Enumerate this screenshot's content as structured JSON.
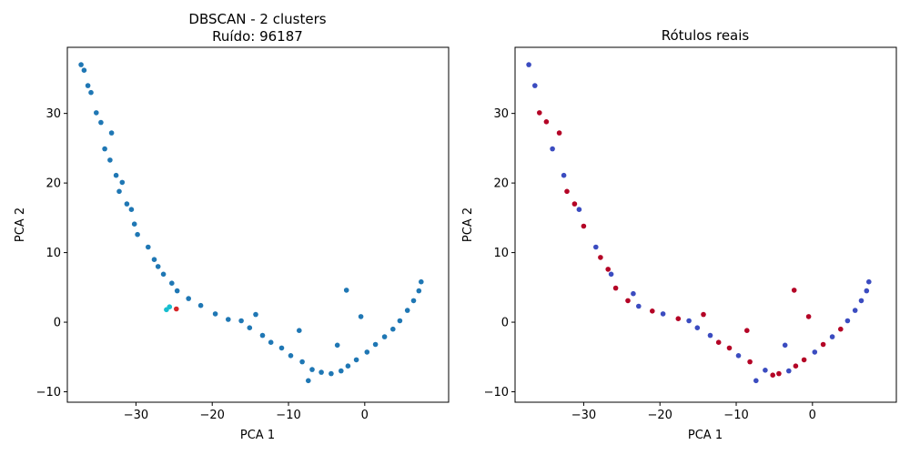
{
  "chart_data": [
    {
      "type": "scatter",
      "title": "DBSCAN - 2 clusters",
      "subtitle": "Ruído: 96187",
      "xlabel": "PCA 1",
      "ylabel": "PCA 2",
      "xlim": [
        -39,
        11
      ],
      "ylim": [
        -11.5,
        39.5
      ],
      "xticks": [
        -30,
        -20,
        -10,
        0
      ],
      "xtick_labels": [
        "−30",
        "−20",
        "−10",
        "0"
      ],
      "yticks": [
        -10,
        0,
        10,
        20,
        30
      ],
      "ytick_labels": [
        "−10",
        "0",
        "10",
        "20",
        "30"
      ],
      "grid": false,
      "series": [
        {
          "color": "#1f77b4",
          "points": [
            [
              -37.2,
              37.0
            ],
            [
              -36.8,
              36.2
            ],
            [
              -36.3,
              34.0
            ],
            [
              -35.9,
              33.0
            ],
            [
              -35.2,
              30.1
            ],
            [
              -34.6,
              28.7
            ],
            [
              -33.2,
              27.2
            ],
            [
              -34.1,
              24.9
            ],
            [
              -33.4,
              23.3
            ],
            [
              -32.6,
              21.1
            ],
            [
              -31.8,
              20.1
            ],
            [
              -32.2,
              18.8
            ],
            [
              -31.2,
              17.0
            ],
            [
              -30.6,
              16.2
            ],
            [
              -30.2,
              14.1
            ],
            [
              -29.8,
              12.6
            ],
            [
              -28.4,
              10.8
            ],
            [
              -27.6,
              9.0
            ],
            [
              -27.1,
              8.0
            ],
            [
              -26.4,
              6.9
            ],
            [
              -25.3,
              5.6
            ],
            [
              -24.6,
              4.5
            ],
            [
              -23.1,
              3.4
            ],
            [
              -21.5,
              2.4
            ],
            [
              -19.6,
              1.2
            ],
            [
              -17.9,
              0.4
            ],
            [
              -15.1,
              -0.8
            ],
            [
              -13.4,
              -1.9
            ],
            [
              -12.3,
              -2.9
            ],
            [
              -10.9,
              -3.7
            ],
            [
              -9.7,
              -4.8
            ],
            [
              -8.2,
              -5.7
            ],
            [
              -6.9,
              -6.8
            ],
            [
              -5.7,
              -7.2
            ],
            [
              -4.4,
              -7.4
            ],
            [
              -3.1,
              -7.0
            ],
            [
              -2.2,
              -6.3
            ],
            [
              -1.1,
              -5.4
            ],
            [
              0.3,
              -4.3
            ],
            [
              1.4,
              -3.2
            ],
            [
              2.6,
              -2.1
            ],
            [
              3.7,
              -1.0
            ],
            [
              4.6,
              0.2
            ],
            [
              5.6,
              1.7
            ],
            [
              6.4,
              3.1
            ],
            [
              7.1,
              4.5
            ],
            [
              7.4,
              5.8
            ],
            [
              -7.4,
              -8.4
            ],
            [
              -2.4,
              4.6
            ],
            [
              -16.2,
              0.2
            ],
            [
              -14.3,
              1.1
            ],
            [
              -8.6,
              -1.2
            ],
            [
              -3.6,
              -3.3
            ],
            [
              -0.5,
              0.8
            ]
          ]
        },
        {
          "color": "#17becf",
          "points": [
            [
              -26.0,
              1.8
            ],
            [
              -25.6,
              2.2
            ]
          ]
        },
        {
          "color": "#d62728",
          "points": [
            [
              -24.7,
              1.9
            ]
          ]
        }
      ]
    },
    {
      "type": "scatter",
      "title": "Rótulos reais",
      "xlabel": "PCA 1",
      "ylabel": "PCA 2",
      "xlim": [
        -39,
        11
      ],
      "ylim": [
        -11.5,
        39.5
      ],
      "xticks": [
        -30,
        -20,
        -10,
        0
      ],
      "xtick_labels": [
        "−30",
        "−20",
        "−10",
        "0"
      ],
      "yticks": [
        -10,
        0,
        10,
        20,
        30
      ],
      "ytick_labels": [
        "−10",
        "0",
        "10",
        "20",
        "30"
      ],
      "grid": false,
      "series": [
        {
          "color": "#3b4cc0",
          "points": [
            [
              -37.2,
              37.0
            ],
            [
              -36.4,
              34.0
            ],
            [
              -34.1,
              24.9
            ],
            [
              -32.6,
              21.1
            ],
            [
              -30.6,
              16.2
            ],
            [
              -28.4,
              10.8
            ],
            [
              -26.4,
              6.9
            ],
            [
              -23.5,
              4.1
            ],
            [
              -22.8,
              2.3
            ],
            [
              -19.6,
              1.2
            ],
            [
              -15.1,
              -0.8
            ],
            [
              -13.4,
              -1.9
            ],
            [
              -9.7,
              -4.8
            ],
            [
              -6.2,
              -6.9
            ],
            [
              -3.1,
              -7.0
            ],
            [
              0.3,
              -4.3
            ],
            [
              2.6,
              -2.1
            ],
            [
              4.6,
              0.2
            ],
            [
              5.6,
              1.7
            ],
            [
              6.4,
              3.1
            ],
            [
              7.1,
              4.5
            ],
            [
              7.4,
              5.8
            ],
            [
              -7.4,
              -8.4
            ],
            [
              -16.2,
              0.2
            ],
            [
              -3.6,
              -3.3
            ]
          ]
        },
        {
          "color": "#b40426",
          "points": [
            [
              -35.8,
              30.1
            ],
            [
              -34.9,
              28.8
            ],
            [
              -33.2,
              27.2
            ],
            [
              -32.2,
              18.8
            ],
            [
              -31.2,
              17.0
            ],
            [
              -30.0,
              13.8
            ],
            [
              -27.8,
              9.3
            ],
            [
              -26.8,
              7.6
            ],
            [
              -25.8,
              4.9
            ],
            [
              -24.2,
              3.1
            ],
            [
              -21.0,
              1.6
            ],
            [
              -17.6,
              0.5
            ],
            [
              -12.3,
              -2.9
            ],
            [
              -10.9,
              -3.7
            ],
            [
              -8.2,
              -5.7
            ],
            [
              -5.2,
              -7.6
            ],
            [
              -4.4,
              -7.4
            ],
            [
              -2.2,
              -6.3
            ],
            [
              -1.1,
              -5.4
            ],
            [
              1.4,
              -3.2
            ],
            [
              3.7,
              -1.0
            ],
            [
              -2.4,
              4.6
            ],
            [
              -14.3,
              1.1
            ],
            [
              -8.6,
              -1.2
            ],
            [
              -0.5,
              0.8
            ]
          ]
        }
      ]
    }
  ]
}
